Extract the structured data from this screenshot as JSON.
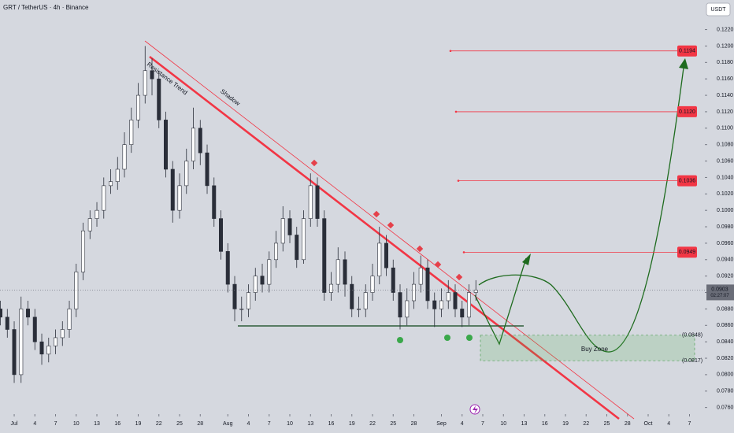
{
  "chart_data": {
    "type": "candlestick",
    "title": "GRT / TetherUS · 4h · Binance",
    "currency": "USDT",
    "up_color": "#ffffff",
    "down_color": "#2a2e39",
    "grid": false,
    "xlim": [
      -2.06,
      100.23
    ],
    "ylim": [
      0.0752,
      0.1256
    ],
    "xticks": [
      {
        "value": 0,
        "label": "Jul"
      },
      {
        "value": 3,
        "label": "4"
      },
      {
        "value": 6,
        "label": "7"
      },
      {
        "value": 9,
        "label": "10"
      },
      {
        "value": 12,
        "label": "13"
      },
      {
        "value": 15,
        "label": "16"
      },
      {
        "value": 18,
        "label": "19"
      },
      {
        "value": 21,
        "label": "22"
      },
      {
        "value": 24,
        "label": "25"
      },
      {
        "value": 27,
        "label": "28"
      },
      {
        "value": 31,
        "label": "Aug"
      },
      {
        "value": 34,
        "label": "4"
      },
      {
        "value": 37,
        "label": "7"
      },
      {
        "value": 40,
        "label": "10"
      },
      {
        "value": 43,
        "label": "13"
      },
      {
        "value": 46,
        "label": "16"
      },
      {
        "value": 49,
        "label": "19"
      },
      {
        "value": 52,
        "label": "22"
      },
      {
        "value": 55,
        "label": "25"
      },
      {
        "value": 58,
        "label": "28"
      },
      {
        "value": 62,
        "label": "Sep"
      },
      {
        "value": 65,
        "label": "4"
      },
      {
        "value": 68,
        "label": "7"
      },
      {
        "value": 71,
        "label": "10"
      },
      {
        "value": 74,
        "label": "13"
      },
      {
        "value": 77,
        "label": "16"
      },
      {
        "value": 80,
        "label": "19"
      },
      {
        "value": 83,
        "label": "22"
      },
      {
        "value": 86,
        "label": "25"
      },
      {
        "value": 89,
        "label": "28"
      },
      {
        "value": 92,
        "label": "Oct"
      },
      {
        "value": 95,
        "label": "4"
      },
      {
        "value": 98,
        "label": "7"
      }
    ],
    "yticks": [
      {
        "value": 0.076,
        "label": "0.0760"
      },
      {
        "value": 0.078,
        "label": "0.0780"
      },
      {
        "value": 0.08,
        "label": "0.0800"
      },
      {
        "value": 0.082,
        "label": "0.0820"
      },
      {
        "value": 0.084,
        "label": "0.0840"
      },
      {
        "value": 0.086,
        "label": "0.0860"
      },
      {
        "value": 0.088,
        "label": "0.0880"
      },
      {
        "value": 0.09,
        "label": "0.0900"
      },
      {
        "value": 0.092,
        "label": "0.0920"
      },
      {
        "value": 0.094,
        "label": "0.0940"
      },
      {
        "value": 0.096,
        "label": "0.0960"
      },
      {
        "value": 0.098,
        "label": "0.0980"
      },
      {
        "value": 0.1,
        "label": "0.1000"
      },
      {
        "value": 0.102,
        "label": "0.1020"
      },
      {
        "value": 0.104,
        "label": "0.1040"
      },
      {
        "value": 0.106,
        "label": "0.1060"
      },
      {
        "value": 0.108,
        "label": "0.1080"
      },
      {
        "value": 0.11,
        "label": "0.1100"
      },
      {
        "value": 0.112,
        "label": "0.1120"
      },
      {
        "value": 0.114,
        "label": "0.1140"
      },
      {
        "value": 0.116,
        "label": "0.1160"
      },
      {
        "value": 0.118,
        "label": "0.1180"
      },
      {
        "value": 0.12,
        "label": "0.1200"
      },
      {
        "value": 0.122,
        "label": "0.1220"
      }
    ],
    "candles": {
      "x": [
        -2,
        -1,
        0,
        1,
        2,
        3,
        4,
        5,
        6,
        7,
        8,
        9,
        10,
        11,
        12,
        13,
        14,
        15,
        16,
        17,
        18,
        19,
        20,
        21,
        22,
        23,
        24,
        25,
        26,
        27,
        28,
        29,
        30,
        31,
        32,
        33,
        34,
        35,
        36,
        37,
        38,
        39,
        40,
        41,
        42,
        43,
        44,
        45,
        46,
        47,
        48,
        49,
        50,
        51,
        52,
        53,
        54,
        55,
        56,
        57,
        58,
        59,
        60,
        61,
        62,
        63,
        64,
        65,
        66,
        67
      ],
      "open": [
        0.088,
        0.087,
        0.0855,
        0.08,
        0.088,
        0.087,
        0.084,
        0.0825,
        0.0835,
        0.0845,
        0.0855,
        0.088,
        0.0925,
        0.0975,
        0.099,
        0.1,
        0.103,
        0.1035,
        0.105,
        0.108,
        0.111,
        0.114,
        0.117,
        0.116,
        0.111,
        0.105,
        0.1,
        0.103,
        0.106,
        0.11,
        0.107,
        0.103,
        0.099,
        0.095,
        0.091,
        0.088,
        0.088,
        0.09,
        0.092,
        0.091,
        0.094,
        0.096,
        0.099,
        0.097,
        0.094,
        0.099,
        0.103,
        0.099,
        0.09,
        0.091,
        0.094,
        0.091,
        0.088,
        0.088,
        0.09,
        0.092,
        0.096,
        0.093,
        0.09,
        0.087,
        0.089,
        0.091,
        0.093,
        0.089,
        0.088,
        0.089,
        0.09,
        0.088,
        0.087,
        0.09
      ],
      "high": [
        0.089,
        0.088,
        0.0865,
        0.0895,
        0.089,
        0.088,
        0.085,
        0.0845,
        0.0855,
        0.0865,
        0.089,
        0.0935,
        0.0985,
        0.1,
        0.101,
        0.104,
        0.105,
        0.1065,
        0.1095,
        0.1125,
        0.1155,
        0.12,
        0.1185,
        0.117,
        0.112,
        0.106,
        0.1045,
        0.1075,
        0.1125,
        0.111,
        0.108,
        0.104,
        0.1,
        0.096,
        0.092,
        0.0895,
        0.091,
        0.093,
        0.0935,
        0.095,
        0.0975,
        0.1005,
        0.1,
        0.098,
        0.1,
        0.1045,
        0.104,
        0.1,
        0.0925,
        0.0955,
        0.095,
        0.092,
        0.0895,
        0.091,
        0.0935,
        0.098,
        0.097,
        0.094,
        0.091,
        0.0905,
        0.0925,
        0.0945,
        0.094,
        0.09,
        0.0905,
        0.0915,
        0.091,
        0.089,
        0.091,
        0.0915
      ],
      "low": [
        0.086,
        0.0845,
        0.079,
        0.079,
        0.086,
        0.083,
        0.0812,
        0.0815,
        0.0825,
        0.0835,
        0.0845,
        0.087,
        0.0915,
        0.0965,
        0.098,
        0.099,
        0.102,
        0.1025,
        0.104,
        0.107,
        0.11,
        0.113,
        0.114,
        0.11,
        0.104,
        0.0985,
        0.099,
        0.102,
        0.105,
        0.1055,
        0.102,
        0.098,
        0.094,
        0.09,
        0.0865,
        0.0865,
        0.087,
        0.089,
        0.09,
        0.09,
        0.093,
        0.095,
        0.096,
        0.093,
        0.0935,
        0.098,
        0.098,
        0.089,
        0.089,
        0.09,
        0.0895,
        0.087,
        0.087,
        0.087,
        0.089,
        0.091,
        0.092,
        0.089,
        0.0855,
        0.086,
        0.088,
        0.09,
        0.088,
        0.0858,
        0.087,
        0.088,
        0.087,
        0.0858,
        0.086,
        0.089
      ],
      "close": [
        0.087,
        0.0855,
        0.08,
        0.088,
        0.087,
        0.084,
        0.0825,
        0.0835,
        0.0845,
        0.0855,
        0.088,
        0.0925,
        0.0975,
        0.099,
        0.1,
        0.103,
        0.1035,
        0.105,
        0.108,
        0.111,
        0.114,
        0.117,
        0.116,
        0.111,
        0.105,
        0.1,
        0.103,
        0.106,
        0.11,
        0.107,
        0.103,
        0.099,
        0.095,
        0.091,
        0.088,
        0.088,
        0.09,
        0.092,
        0.091,
        0.094,
        0.096,
        0.099,
        0.097,
        0.094,
        0.099,
        0.103,
        0.099,
        0.09,
        0.091,
        0.094,
        0.091,
        0.088,
        0.088,
        0.09,
        0.092,
        0.096,
        0.093,
        0.09,
        0.087,
        0.089,
        0.091,
        0.093,
        0.089,
        0.088,
        0.089,
        0.09,
        0.088,
        0.087,
        0.09,
        0.0903
      ]
    },
    "last_price": {
      "value": 0.0903,
      "label": "0.0903",
      "countdown": "02:27:07"
    },
    "targets": {
      "values": [
        0.1194,
        0.112,
        0.1036,
        0.0949
      ],
      "value_labels": [
        "0.1194",
        "0.1120",
        "0.1036",
        "0.0949"
      ]
    },
    "buy_zone": {
      "label": "Buy Zone",
      "top": 0.0848,
      "bottom": 0.0817,
      "top_label": "(0.0848)",
      "bottom_label": "(0.0817)"
    },
    "trend_labels": [
      "Resistance Trend",
      "Shadow"
    ]
  }
}
